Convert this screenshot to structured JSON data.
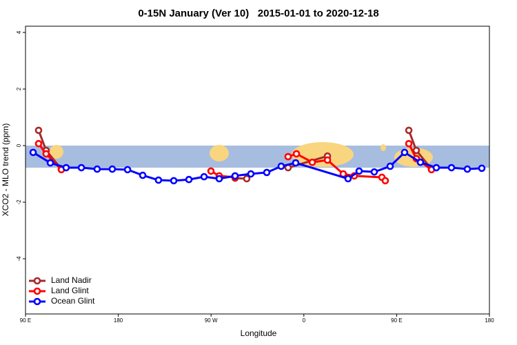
{
  "chart_data": {
    "type": "line",
    "title": "0-15N January (Ver 10)   2015-01-01 to 2020-12-18",
    "xlabel": "Longitude",
    "ylabel": "XCO2 - MLO trend (ppm)",
    "xlim": [
      90,
      540
    ],
    "ylim": [
      -5.95,
      4.22
    ],
    "xticks": [
      {
        "value": 90,
        "label": "90 E"
      },
      {
        "value": 180,
        "label": "180"
      },
      {
        "value": 270,
        "label": "90 W"
      },
      {
        "value": 360,
        "label": "0"
      },
      {
        "value": 450,
        "label": "90 E"
      },
      {
        "value": 540,
        "label": "180"
      }
    ],
    "yticks": [
      -4,
      -2,
      0,
      2,
      4
    ],
    "legend": "bottom-left",
    "series": [
      {
        "name": "Land Nadir",
        "color": "#a52a2a",
        "x": [
          102.7,
          110,
          124.8,
          null,
          293.3,
          304.6,
          null,
          344.7,
          382.9,
          null,
          461.8,
          469.1,
          483.8
        ],
        "values": [
          0.54,
          -0.17,
          -0.83,
          null,
          -1.15,
          -1.17,
          null,
          -0.78,
          -0.37,
          null,
          0.54,
          -0.17,
          -0.83
        ]
      },
      {
        "name": "Land Glint",
        "color": "#ff0000",
        "x": [
          102.7,
          110,
          124.8,
          null,
          269.9,
          277.9,
          293.3,
          null,
          344.7,
          352.8,
          368.2,
          382.9,
          398.2,
          408.9,
          435.7,
          439,
          null,
          461.8,
          469.1,
          483.8
        ],
        "values": [
          0.07,
          -0.29,
          -0.85,
          null,
          -0.9,
          -1.07,
          -1.12,
          null,
          -0.39,
          -0.29,
          -0.59,
          -0.51,
          -1.0,
          -1.07,
          -1.12,
          -1.24,
          null,
          0.07,
          -0.46,
          -0.85
        ]
      },
      {
        "name": "Ocean Glint",
        "color": "#0000ff",
        "x": [
          97.4,
          114.1,
          129.4,
          144.2,
          159.5,
          174.2,
          189,
          203.7,
          219,
          233.8,
          248.5,
          263.2,
          277.9,
          293.3,
          308.6,
          324,
          338,
          352.1,
          402.9,
          413.6,
          428.3,
          443.7,
          457.7,
          473.1,
          488.5,
          503.2,
          518.6,
          532.6
        ],
        "values": [
          -0.24,
          -0.61,
          -0.78,
          -0.78,
          -0.83,
          -0.83,
          -0.85,
          -1.05,
          -1.22,
          -1.24,
          -1.2,
          -1.1,
          -1.17,
          -1.07,
          -1.0,
          -0.95,
          -0.73,
          -0.61,
          -1.17,
          -0.9,
          -0.93,
          -0.73,
          -0.24,
          -0.59,
          -0.78,
          -0.78,
          -0.83,
          -0.8
        ]
      }
    ]
  }
}
